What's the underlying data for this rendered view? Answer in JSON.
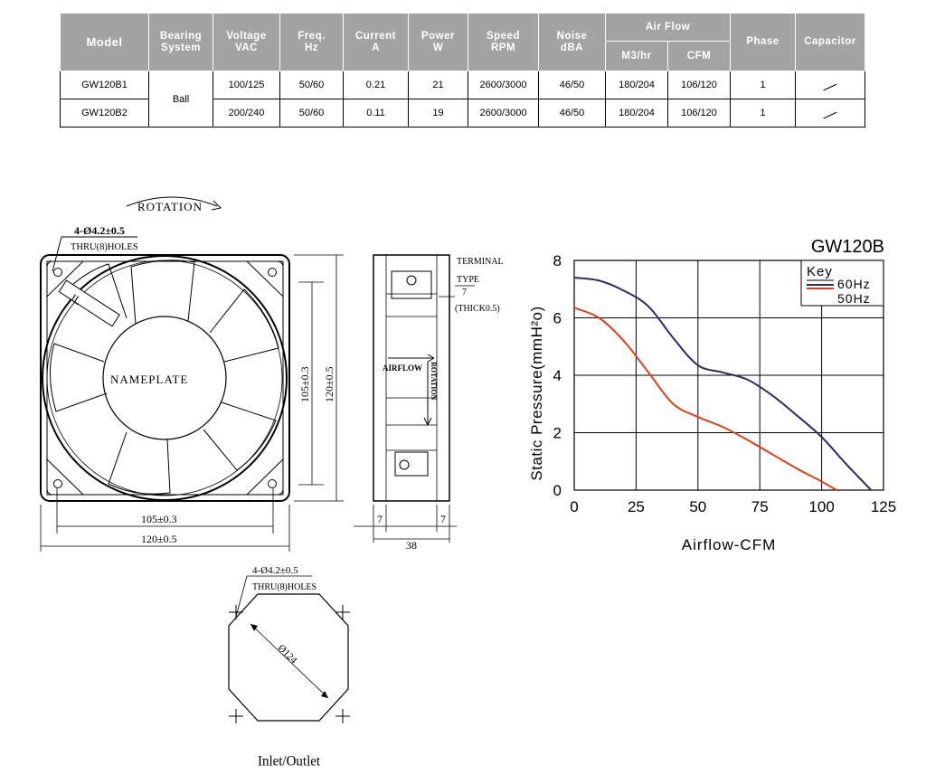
{
  "table": {
    "headers": {
      "model": "Model",
      "bearing": [
        "Bearing",
        "System"
      ],
      "voltage": [
        "Voltage",
        "VAC"
      ],
      "freq": [
        "Freq.",
        "Hz"
      ],
      "current": [
        "Current",
        "A"
      ],
      "power": [
        "Power",
        "W"
      ],
      "speed": [
        "Speed",
        "RPM"
      ],
      "noise": [
        "Noise",
        "dBA"
      ],
      "airflow": "Air Flow",
      "airflow_m3": "M3/hr",
      "airflow_cfm": "CFM",
      "phase": "Phase",
      "capacitor": "Capacitor"
    },
    "bearing_value": "Ball",
    "rows": [
      {
        "model": "GW120B1",
        "voltage": "100/125",
        "freq": "50/60",
        "current": "0.21",
        "power": "21",
        "speed": "2600/3000",
        "noise": "46/50",
        "m3hr": "180/204",
        "cfm": "106/120",
        "phase": "1"
      },
      {
        "model": "GW120B2",
        "voltage": "200/240",
        "freq": "50/60",
        "current": "0.11",
        "power": "19",
        "speed": "2600/3000",
        "noise": "46/50",
        "m3hr": "180/204",
        "cfm": "106/120",
        "phase": "1"
      }
    ]
  },
  "drawing": {
    "rotation": "ROTATION",
    "holes": "4-Ø4.2±0.5",
    "thru": "THRU(8)HOLES",
    "nameplate": "NAMEPLATE",
    "dim_105": "105±0.3",
    "dim_120": "120±0.5",
    "terminal": "TERMINAL",
    "type": "TYPE",
    "seven": "7",
    "thick": "(THICK0.5)",
    "depth": "38",
    "airflow": "AIRFLOW",
    "rotation_side": "ROTATION",
    "diameter": "Ø124",
    "inlet": "Inlet/Outlet"
  },
  "chart_data": {
    "type": "line",
    "title": "GW120B",
    "xlabel": "Airflow-CFM",
    "ylabel": "Static Pressure(mmH²o)",
    "xlim": [
      0,
      125
    ],
    "ylim": [
      0,
      8
    ],
    "xticks": [
      "0",
      "25",
      "50",
      "75",
      "100",
      "125"
    ],
    "yticks": [
      "0",
      "2",
      "4",
      "6",
      "8"
    ],
    "legend_title": "Key",
    "grid": true,
    "legend_position": "top-right",
    "series": [
      {
        "name": "60Hz",
        "color": "#2b2b63",
        "x": [
          0,
          10,
          20,
          30,
          40,
          50,
          60,
          70,
          80,
          90,
          100,
          110,
          120
        ],
        "y": [
          7.4,
          7.3,
          6.95,
          6.4,
          5.3,
          4.35,
          4.1,
          3.85,
          3.3,
          2.6,
          1.85,
          0.9,
          0
        ]
      },
      {
        "name": "50Hz",
        "color": "#d9411e",
        "x": [
          0,
          10,
          20,
          30,
          40,
          50,
          60,
          70,
          80,
          90,
          100,
          106
        ],
        "y": [
          6.35,
          6.0,
          5.2,
          4.1,
          3.0,
          2.55,
          2.2,
          1.75,
          1.25,
          0.75,
          0.3,
          0
        ]
      }
    ]
  }
}
